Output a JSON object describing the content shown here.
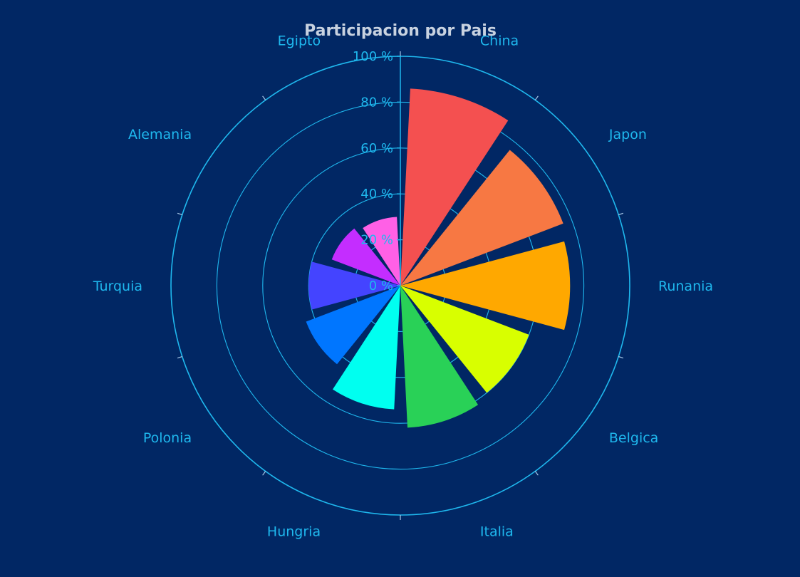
{
  "chart_data": {
    "type": "polar-bar",
    "title": "Participacion por Pais",
    "categories": [
      "China",
      "Japon",
      "Runania",
      "Belgica",
      "Italia",
      "Hungria",
      "Polonia",
      "Turquia",
      "Alemania",
      "Egipto"
    ],
    "values": [
      86,
      76,
      74,
      60,
      62,
      54,
      44,
      40,
      32,
      30
    ],
    "colors": [
      "#f45050",
      "#f77843",
      "#ffa800",
      "#d8ff00",
      "#29d157",
      "#00fff0",
      "#0076ff",
      "#4444ff",
      "#c42dff",
      "#ff60e6"
    ],
    "radial_axis": {
      "range": [
        0,
        100
      ],
      "ticks": [
        {
          "value": 0,
          "label": "0 %"
        },
        {
          "value": 20,
          "label": "20 %"
        },
        {
          "value": 40,
          "label": "40 %"
        },
        {
          "value": 60,
          "label": "60 %"
        },
        {
          "value": 80,
          "label": "80 %"
        },
        {
          "value": 100,
          "label": "100 %"
        }
      ]
    },
    "grid": true,
    "background": "#012764",
    "axis_color": "#1fb8ee",
    "title_color": "#c8d2e0"
  }
}
